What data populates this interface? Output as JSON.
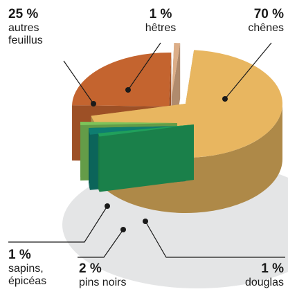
{
  "chart_data": {
    "type": "pie",
    "categories": [
      "chênes",
      "douglas",
      "pins noirs",
      "sapins, épicéas",
      "autres feuillus",
      "hêtres"
    ],
    "values": [
      70,
      1,
      2,
      1,
      25,
      1
    ],
    "value_labels": [
      "70 %",
      "1 %",
      "2 %",
      "1 %",
      "25 %",
      "1 %"
    ],
    "colors": [
      "#e8b660",
      "#20a05c",
      "#0e7d70",
      "#7dc35a",
      "#c4642f",
      "#dcae88"
    ]
  }
}
